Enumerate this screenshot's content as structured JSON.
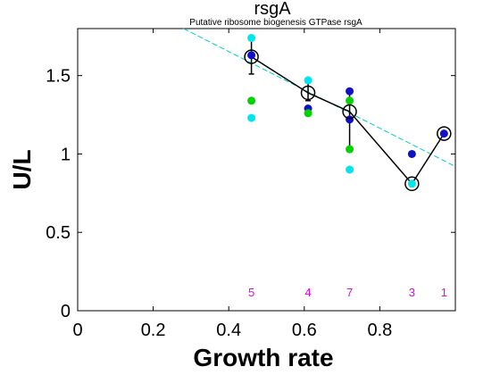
{
  "chart_data": {
    "type": "scatter",
    "title": "rsgA",
    "subtitle": "Putative ribosome biogenesis GTPase rsgA",
    "xlabel": "Growth rate",
    "ylabel": "U/L",
    "xlim": [
      0,
      1
    ],
    "ylim": [
      0,
      1.8
    ],
    "xticks": [
      "0",
      "0.2",
      "0.4",
      "0.6",
      "0.8"
    ],
    "yticks": [
      "0",
      "0.5",
      "1",
      "1.5"
    ],
    "grid": false,
    "colors": {
      "cyan": "#00e5ee",
      "green": "#00d400",
      "blue": "#1010c8",
      "trend": "#00cccc",
      "count": "#ee00ee"
    },
    "points": [
      {
        "x": 0.46,
        "y": 1.74,
        "color": "cyan"
      },
      {
        "x": 0.46,
        "y": 1.63,
        "color": "blue"
      },
      {
        "x": 0.46,
        "y": 1.34,
        "color": "green"
      },
      {
        "x": 0.46,
        "y": 1.23,
        "color": "cyan"
      },
      {
        "x": 0.61,
        "y": 1.47,
        "color": "cyan"
      },
      {
        "x": 0.61,
        "y": 1.29,
        "color": "blue"
      },
      {
        "x": 0.61,
        "y": 1.26,
        "color": "green"
      },
      {
        "x": 0.72,
        "y": 1.4,
        "color": "blue"
      },
      {
        "x": 0.72,
        "y": 1.34,
        "color": "green"
      },
      {
        "x": 0.72,
        "y": 1.22,
        "color": "blue"
      },
      {
        "x": 0.72,
        "y": 1.03,
        "color": "green"
      },
      {
        "x": 0.72,
        "y": 0.9,
        "color": "cyan"
      },
      {
        "x": 0.885,
        "y": 1.0,
        "color": "blue"
      },
      {
        "x": 0.885,
        "y": 0.81,
        "color": "cyan"
      },
      {
        "x": 0.97,
        "y": 1.13,
        "color": "blue"
      }
    ],
    "mean_line": {
      "x": [
        0.46,
        0.61,
        0.72,
        0.885,
        0.97
      ],
      "y": [
        1.62,
        1.39,
        1.27,
        0.81,
        1.13
      ]
    },
    "error_bars": [
      {
        "x": 0.46,
        "low": 1.51,
        "high": 1.74
      },
      {
        "x": 0.61,
        "low": 1.34,
        "high": 1.47
      },
      {
        "x": 0.72,
        "low": 1.03,
        "high": 1.4
      }
    ],
    "trend_line": {
      "x": [
        0.28,
        1.0
      ],
      "y": [
        1.8,
        0.92
      ]
    },
    "counts": [
      {
        "x": 0.46,
        "label": "5"
      },
      {
        "x": 0.61,
        "label": "4"
      },
      {
        "x": 0.72,
        "label": "7"
      },
      {
        "x": 0.885,
        "label": "3"
      },
      {
        "x": 0.97,
        "label": "1"
      }
    ]
  }
}
